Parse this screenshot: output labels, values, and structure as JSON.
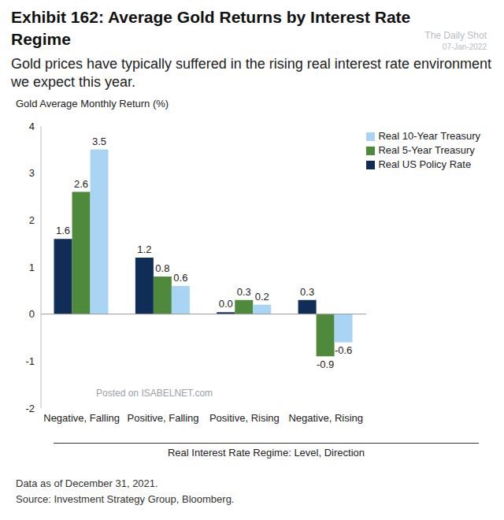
{
  "chart_data": {
    "type": "bar",
    "title": "Exhibit 162: Average Gold Returns by Interest Rate Regime",
    "subtitle": "Gold prices have typically suffered in the rising real interest rate environment we expect this year.",
    "y_label": "Gold Average Monthly Return (%)",
    "x_label": "Real Interest Rate Regime: Level, Direction",
    "categories": [
      "Negative, Falling",
      "Positive, Falling",
      "Positive, Rising",
      "Negative, Rising"
    ],
    "series": [
      {
        "name": "Real US Policy Rate",
        "color": "#0f2d57",
        "values": [
          1.6,
          1.2,
          0.04,
          0.3
        ],
        "value_labels": [
          "1.6",
          "1.2",
          "0.0",
          "0.3"
        ]
      },
      {
        "name": "Real 5-Year Treasury",
        "color": "#4f8a3c",
        "values": [
          2.6,
          0.8,
          0.3,
          -0.9
        ],
        "value_labels": [
          "2.6",
          "0.8",
          "0.3",
          "-0.9"
        ]
      },
      {
        "name": "Real 10-Year Treasury",
        "color": "#a9d4f3",
        "values": [
          3.5,
          0.6,
          0.2,
          -0.6
        ],
        "value_labels": [
          "3.5",
          "0.6",
          "0.2",
          "-0.6"
        ]
      }
    ],
    "ylim": [
      -2,
      4
    ],
    "yticks": [
      -2,
      -1,
      0,
      1,
      2,
      3,
      4
    ],
    "grid": false,
    "legend": "upper right",
    "data_labels": true,
    "footnotes": [
      "Data as of December 31, 2021.",
      "Source: Investment Strategy Group, Bloomberg."
    ],
    "annotations": [
      "The Daily Shot",
      "07-Jan-2022",
      "Posted on ISABELNET.com"
    ]
  }
}
